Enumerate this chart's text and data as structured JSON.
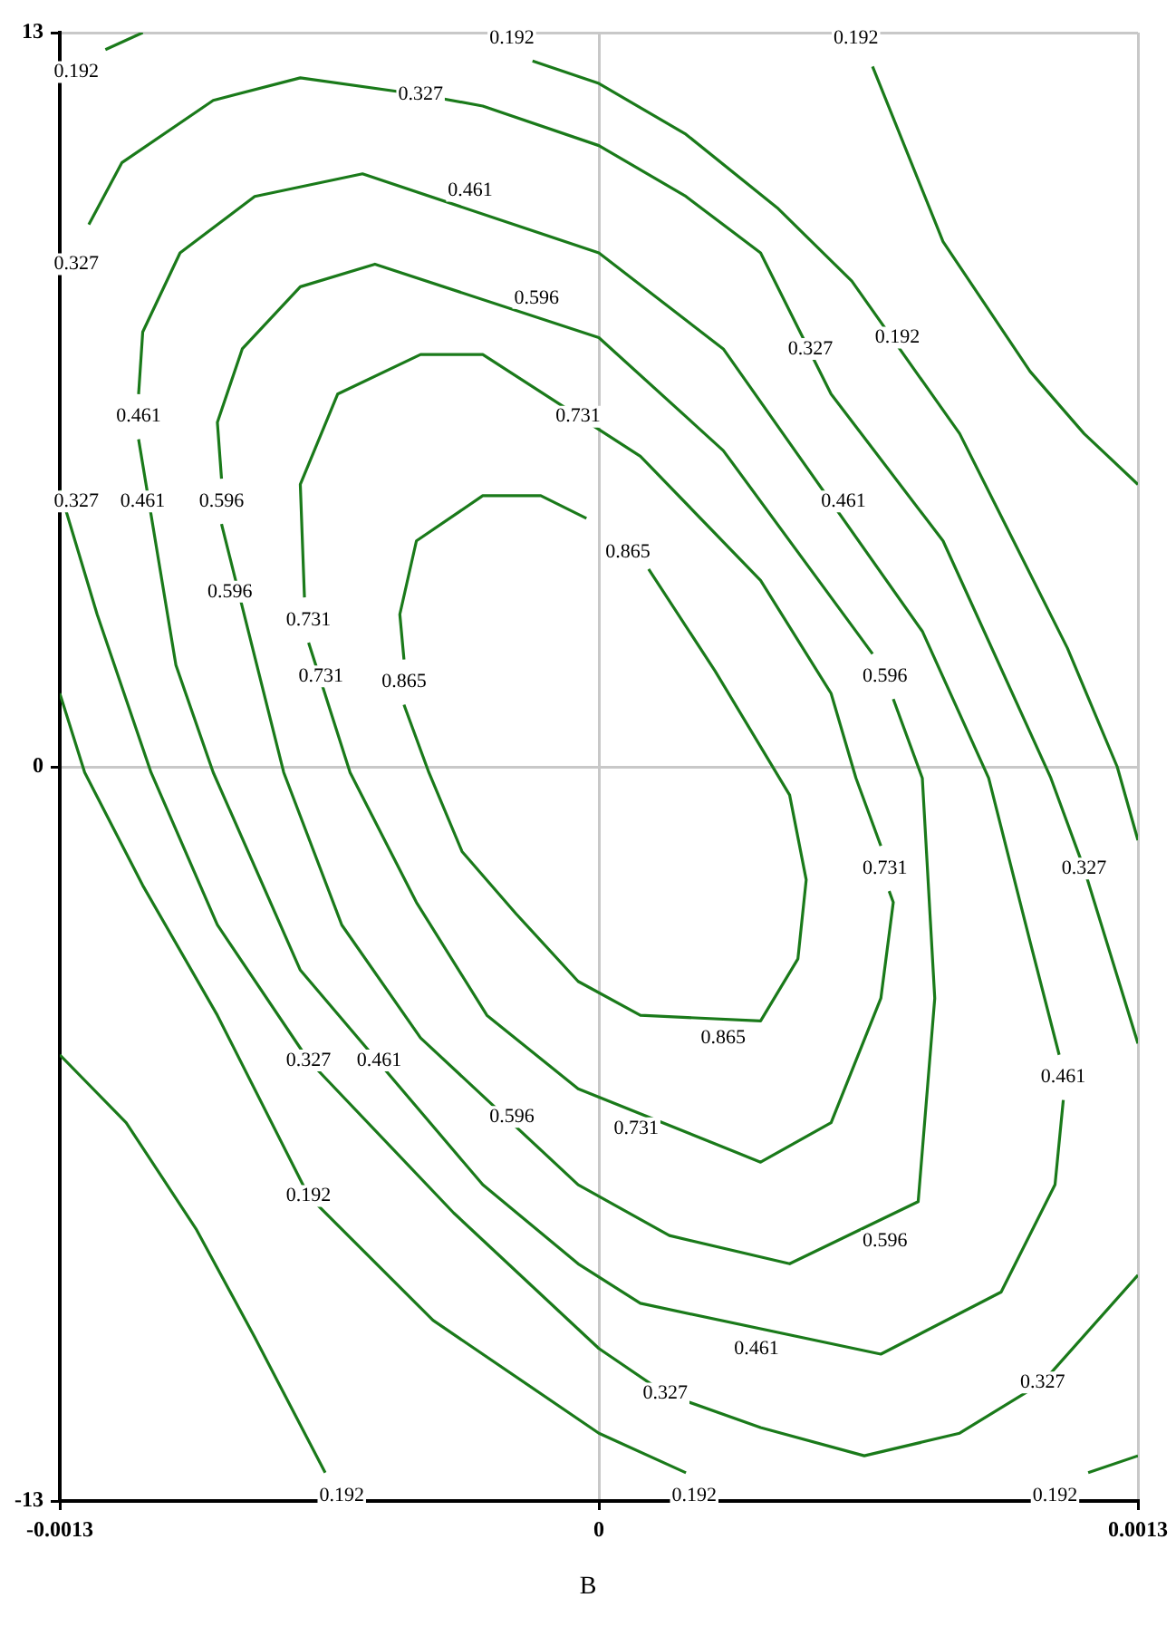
{
  "chart_data": {
    "type": "line",
    "xlim": [
      -0.0013,
      0.0013
    ],
    "xticks": [
      -0.0013,
      0,
      0.0013
    ],
    "ylim": [
      -13,
      13
    ],
    "yticks": [
      -13,
      0,
      13
    ],
    "grid": true,
    "series": [
      {
        "color": "#1a7a1a",
        "x": [
          -0.00119,
          -0.0011
        ],
        "values": [
          12.7,
          13
        ]
      },
      {
        "color": "#1a7a1a",
        "x": [
          -0.00016,
          0,
          0.00021,
          0.00043,
          0.00061,
          0.00087,
          0.001,
          0.00113,
          0.00125,
          0.0013
        ],
        "values": [
          12.5,
          12.1,
          11.2,
          9.9,
          8.6,
          5.9,
          4.0,
          2.1,
          0,
          -1.3
        ]
      },
      {
        "color": "#1a7a1a",
        "x": [
          0.00066,
          0.00083,
          0.00104,
          0.00117,
          0.0013
        ],
        "values": [
          12.4,
          9.3,
          7.0,
          5.9,
          5.0
        ]
      },
      {
        "color": "#1a7a1a",
        "x": [
          -0.00123,
          -0.00115,
          -0.00093,
          -0.00072,
          -0.00043,
          -0.00028,
          0,
          0.00021,
          0.00039,
          0.00056,
          0.00083,
          0.00109,
          0.00117,
          0.0013
        ],
        "values": [
          9.6,
          10.7,
          11.8,
          12.2,
          11.9,
          11.7,
          11.0,
          10.1,
          9.1,
          6.6,
          4.0,
          -0.2,
          -1.8,
          -4.9
        ]
      },
      {
        "color": "#1a7a1a",
        "x": [
          -0.0013,
          -0.00121,
          -0.00108,
          -0.00092,
          -0.0007,
          -0.00035,
          0,
          0.00016,
          0.00039,
          0.00064,
          0.00087,
          0.00107,
          0.0013
        ],
        "values": [
          4.9,
          2.7,
          -0.1,
          -2.8,
          -5.2,
          -7.9,
          -10.3,
          -11.1,
          -11.7,
          -12.2,
          -11.8,
          -10.9,
          -9.0
        ]
      },
      {
        "color": "#1a7a1a",
        "x": [
          -0.0013,
          -0.00124,
          -0.0011,
          -0.00092,
          -0.0007,
          -0.0004,
          0,
          0.00021
        ],
        "values": [
          1.3,
          -0.1,
          -2.1,
          -4.4,
          -7.6,
          -9.8,
          -11.8,
          -12.5
        ]
      },
      {
        "color": "#1a7a1a",
        "x": [
          -0.0013,
          -0.00114,
          -0.00097,
          -0.00083,
          -0.00066
        ],
        "values": [
          -5.1,
          -6.3,
          -8.2,
          -10.1,
          -12.5
        ]
      },
      {
        "color": "#1a7a1a",
        "x": [
          0.0013,
          0.00118
        ],
        "values": [
          -12.2,
          -12.5
        ]
      },
      {
        "color": "#1a7a1a",
        "x": [
          -0.00111,
          -0.0011,
          -0.00101,
          -0.00083,
          -0.00057,
          0,
          0.0003,
          0.00078,
          0.00094,
          0.00104,
          0.00111
        ],
        "values": [
          6.6,
          7.7,
          9.1,
          10.1,
          10.5,
          9.1,
          7.4,
          2.4,
          -0.2,
          -3.1,
          -5.1
        ]
      },
      {
        "color": "#1a7a1a",
        "x": [
          -0.00111,
          -0.00102,
          -0.00093,
          -0.00072,
          -0.00028,
          -5e-05,
          0.0001,
          0.00068,
          0.00097,
          0.0011,
          0.00112
        ],
        "values": [
          5.8,
          1.8,
          -0.1,
          -3.6,
          -7.4,
          -8.8,
          -9.5,
          -10.4,
          -9.3,
          -7.4,
          -5.9
        ]
      },
      {
        "color": "#1a7a1a",
        "x": [
          -0.00091,
          -0.00092,
          -0.00086,
          -0.00072,
          -0.00054,
          0,
          0.0003,
          0.00066
        ],
        "values": [
          5.1,
          6.1,
          7.4,
          8.5,
          8.9,
          7.6,
          5.6,
          2.0
        ]
      },
      {
        "color": "#1a7a1a",
        "x": [
          -0.00091,
          -0.00076,
          -0.00062,
          -0.00043,
          -5e-05,
          0.00017,
          0.00046,
          0.00077,
          0.00081,
          0.00078,
          0.00071
        ],
        "values": [
          4.3,
          -0.1,
          -2.8,
          -4.8,
          -7.4,
          -8.3,
          -8.8,
          -7.7,
          -4.1,
          -0.2,
          1.2
        ]
      },
      {
        "color": "#1a7a1a",
        "x": [
          -0.00071,
          -0.00072,
          -0.00063,
          -0.00043,
          -0.00028,
          0.0001,
          0.00039,
          0.00056,
          0.00062,
          0.00068
        ],
        "values": [
          3.0,
          5.0,
          6.6,
          7.3,
          7.3,
          5.5,
          3.3,
          1.3,
          -0.2,
          -1.4
        ]
      },
      {
        "color": "#1a7a1a",
        "x": [
          -0.0007,
          -0.0006,
          -0.00044,
          -0.00027,
          -5e-05,
          0.00039,
          0.00056,
          0.00068,
          0.00071,
          0.0007
        ],
        "values": [
          2.2,
          -0.1,
          -2.4,
          -4.4,
          -5.7,
          -7.0,
          -6.3,
          -4.1,
          -2.4,
          -2.2
        ]
      },
      {
        "color": "#1a7a1a",
        "x": [
          -0.00047,
          -0.00048,
          -0.00044,
          -0.00028,
          -0.00014,
          -3e-05
        ],
        "values": [
          1.9,
          2.7,
          4.0,
          4.8,
          4.8,
          4.4
        ]
      },
      {
        "color": "#1a7a1a",
        "x": [
          0.00012,
          0.00028,
          0.00046,
          0.0005,
          0.00048,
          0.00039,
          0.0001,
          -5e-05,
          -0.0002,
          -0.00033,
          -0.00041,
          -0.00047
        ],
        "values": [
          3.5,
          1.7,
          -0.5,
          -2.0,
          -3.4,
          -4.5,
          -4.4,
          -3.8,
          -2.6,
          -1.5,
          -0.1,
          1.1
        ]
      }
    ],
    "annotations": [
      {
        "text": "0.192",
        "x": -0.00021,
        "y": 12.9
      },
      {
        "text": "0.192",
        "x": 0.00062,
        "y": 12.9
      },
      {
        "text": "0.192",
        "x": -0.00126,
        "y": 12.3
      },
      {
        "text": "0.327",
        "x": -0.00043,
        "y": 11.9
      },
      {
        "text": "0.327",
        "x": -0.00126,
        "y": 8.9
      },
      {
        "text": "0.461",
        "x": -0.00031,
        "y": 10.2
      },
      {
        "text": "0.596",
        "x": -0.00015,
        "y": 8.3
      },
      {
        "text": "0.731",
        "x": -5e-05,
        "y": 6.2
      },
      {
        "text": "0.327",
        "x": 0.00051,
        "y": 7.4
      },
      {
        "text": "0.192",
        "x": 0.00072,
        "y": 7.6
      },
      {
        "text": "0.461",
        "x": -0.00111,
        "y": 6.2
      },
      {
        "text": "0.461",
        "x": -0.0011,
        "y": 4.7
      },
      {
        "text": "0.327",
        "x": -0.00126,
        "y": 4.7
      },
      {
        "text": "0.596",
        "x": -0.00091,
        "y": 4.7
      },
      {
        "text": "0.596",
        "x": -0.00089,
        "y": 3.1
      },
      {
        "text": "0.731",
        "x": -0.0007,
        "y": 2.6
      },
      {
        "text": "0.731",
        "x": -0.00067,
        "y": 1.6
      },
      {
        "text": "0.865",
        "x": -0.00047,
        "y": 1.5
      },
      {
        "text": "0.865",
        "x": 7e-05,
        "y": 3.8
      },
      {
        "text": "0.461",
        "x": 0.00059,
        "y": 4.7
      },
      {
        "text": "0.596",
        "x": 0.00069,
        "y": 1.6
      },
      {
        "text": "0.731",
        "x": 0.00069,
        "y": -1.8
      },
      {
        "text": "0.327",
        "x": 0.00117,
        "y": -1.8
      },
      {
        "text": "0.461",
        "x": 0.00112,
        "y": -5.5
      },
      {
        "text": "0.327",
        "x": -0.0007,
        "y": -5.2
      },
      {
        "text": "0.461",
        "x": -0.00053,
        "y": -5.2
      },
      {
        "text": "0.596",
        "x": -0.00021,
        "y": -6.2
      },
      {
        "text": "0.865",
        "x": 0.0003,
        "y": -4.8
      },
      {
        "text": "0.731",
        "x": 9e-05,
        "y": -6.4
      },
      {
        "text": "0.192",
        "x": -0.0007,
        "y": -7.6
      },
      {
        "text": "0.596",
        "x": 0.00069,
        "y": -8.4
      },
      {
        "text": "0.461",
        "x": 0.00038,
        "y": -10.3
      },
      {
        "text": "0.327",
        "x": 0.00016,
        "y": -11.1
      },
      {
        "text": "0.327",
        "x": 0.00107,
        "y": -10.9
      },
      {
        "text": "0.192",
        "x": -0.00062,
        "y": -12.9
      },
      {
        "text": "0.192",
        "x": 0.00023,
        "y": -12.9
      },
      {
        "text": "0.192",
        "x": 0.0011,
        "y": -12.9
      },
      "B"
    ]
  }
}
